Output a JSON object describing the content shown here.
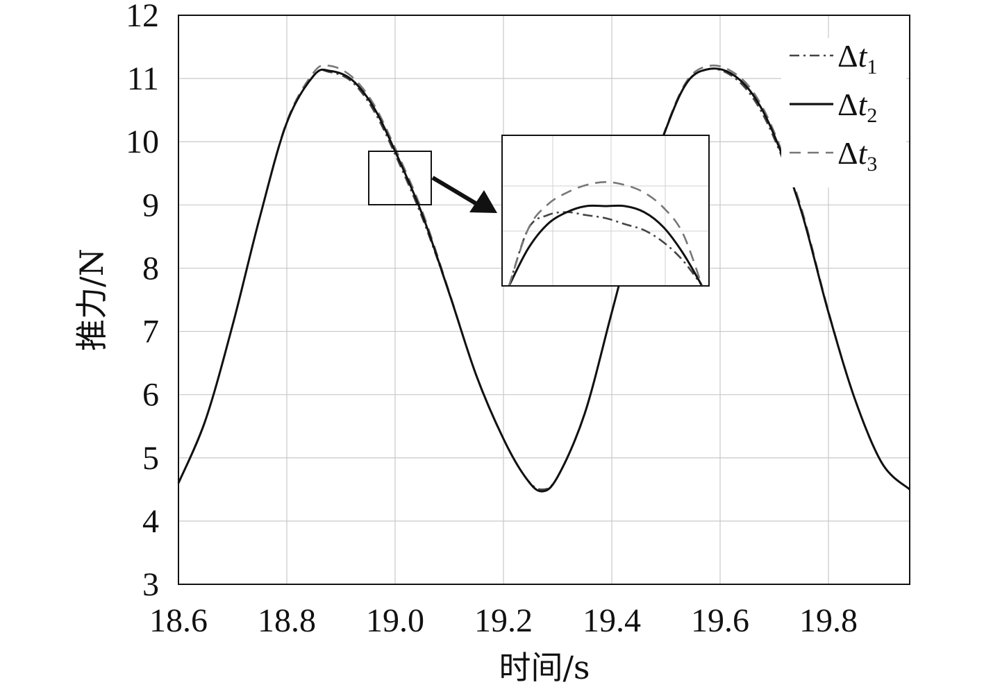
{
  "chart_data": {
    "type": "line",
    "title": "",
    "xlabel": "时间/s",
    "ylabel": "推力/N",
    "xlim": [
      18.6,
      19.95
    ],
    "ylim": [
      3,
      12
    ],
    "xticks": [
      18.6,
      18.8,
      19.0,
      19.2,
      19.4,
      19.6,
      19.8
    ],
    "xtick_labels": [
      "18.6",
      "18.8",
      "19.0",
      "19.2",
      "19.4",
      "19.6",
      "19.8"
    ],
    "yticks": [
      3,
      4,
      5,
      6,
      7,
      8,
      9,
      10,
      11,
      12
    ],
    "ytick_labels": [
      "3",
      "4",
      "5",
      "6",
      "7",
      "8",
      "9",
      "10",
      "11",
      "12"
    ],
    "grid": true,
    "legend_position": "top-right",
    "series": [
      {
        "name": "Δt1",
        "name_main": "Δt",
        "name_sub": "1",
        "style": "dash-dot",
        "color": "#444444",
        "x": [
          18.6,
          18.65,
          18.7,
          18.75,
          18.8,
          18.85,
          18.88,
          18.92,
          18.96,
          19.0,
          19.05,
          19.1,
          19.15,
          19.2,
          19.24,
          19.27,
          19.3,
          19.35,
          19.4,
          19.45,
          19.5,
          19.54,
          19.58,
          19.62,
          19.66,
          19.7,
          19.75,
          19.8,
          19.85,
          19.9,
          19.95
        ],
        "y": [
          4.6,
          5.6,
          7.1,
          8.8,
          10.3,
          11.05,
          11.1,
          10.95,
          10.5,
          9.8,
          8.8,
          7.6,
          6.3,
          5.3,
          4.7,
          4.5,
          4.7,
          5.7,
          7.3,
          8.9,
          10.2,
          10.95,
          11.15,
          11.05,
          10.7,
          10.05,
          8.9,
          7.3,
          5.9,
          4.9,
          4.5
        ]
      },
      {
        "name": "Δt2",
        "name_main": "Δt",
        "name_sub": "2",
        "style": "solid",
        "color": "#111111",
        "x": [
          18.6,
          18.65,
          18.7,
          18.75,
          18.8,
          18.85,
          18.88,
          18.92,
          18.96,
          19.0,
          19.05,
          19.1,
          19.15,
          19.2,
          19.24,
          19.27,
          19.3,
          19.35,
          19.4,
          19.45,
          19.5,
          19.54,
          19.58,
          19.62,
          19.66,
          19.7,
          19.75,
          19.8,
          19.85,
          19.9,
          19.95
        ],
        "y": [
          4.6,
          5.6,
          7.1,
          8.8,
          10.3,
          11.05,
          11.12,
          10.98,
          10.55,
          9.85,
          8.85,
          7.6,
          6.3,
          5.3,
          4.7,
          4.47,
          4.7,
          5.7,
          7.3,
          8.9,
          10.2,
          10.95,
          11.15,
          11.08,
          10.75,
          10.1,
          8.9,
          7.3,
          5.9,
          4.9,
          4.5
        ]
      },
      {
        "name": "Δt3",
        "name_main": "Δt",
        "name_sub": "3",
        "style": "dashed",
        "color": "#777777",
        "x": [
          18.6,
          18.65,
          18.7,
          18.75,
          18.8,
          18.85,
          18.88,
          18.92,
          18.96,
          19.0,
          19.05,
          19.1,
          19.15,
          19.2,
          19.24,
          19.27,
          19.3,
          19.35,
          19.4,
          19.45,
          19.5,
          19.54,
          19.58,
          19.62,
          19.66,
          19.7,
          19.75,
          19.8,
          19.85,
          19.9,
          19.95
        ],
        "y": [
          4.6,
          5.6,
          7.1,
          8.8,
          10.32,
          11.1,
          11.2,
          11.03,
          10.6,
          9.9,
          8.9,
          7.62,
          6.3,
          5.3,
          4.7,
          4.48,
          4.7,
          5.7,
          7.3,
          8.92,
          10.22,
          10.98,
          11.2,
          11.12,
          10.8,
          10.15,
          8.95,
          7.32,
          5.9,
          4.9,
          4.5
        ]
      }
    ],
    "inset": {
      "zoom_region_x": [
        18.95,
        19.07
      ],
      "zoom_region_y": [
        9.0,
        9.85
      ],
      "grid": true,
      "series": [
        {
          "name": "Δt1",
          "style": "dash-dot",
          "color": "#444444",
          "x": [
            0.0,
            0.1,
            0.2,
            0.3,
            0.4,
            0.5,
            0.6,
            0.7,
            0.8,
            0.9,
            1.0
          ],
          "y": [
            0.0,
            0.38,
            0.47,
            0.49,
            0.47,
            0.45,
            0.41,
            0.37,
            0.29,
            0.17,
            0.0
          ]
        },
        {
          "name": "Δt2",
          "style": "solid",
          "color": "#111111",
          "x": [
            0.0,
            0.1,
            0.2,
            0.3,
            0.4,
            0.5,
            0.6,
            0.7,
            0.8,
            0.9,
            1.0
          ],
          "y": [
            0.0,
            0.25,
            0.41,
            0.49,
            0.53,
            0.53,
            0.53,
            0.49,
            0.39,
            0.22,
            0.0
          ]
        },
        {
          "name": "Δt3",
          "style": "dashed",
          "color": "#777777",
          "x": [
            0.0,
            0.1,
            0.2,
            0.3,
            0.4,
            0.5,
            0.6,
            0.7,
            0.8,
            0.9,
            1.0
          ],
          "y": [
            0.0,
            0.38,
            0.54,
            0.62,
            0.67,
            0.69,
            0.67,
            0.62,
            0.52,
            0.35,
            0.0
          ]
        }
      ]
    }
  }
}
